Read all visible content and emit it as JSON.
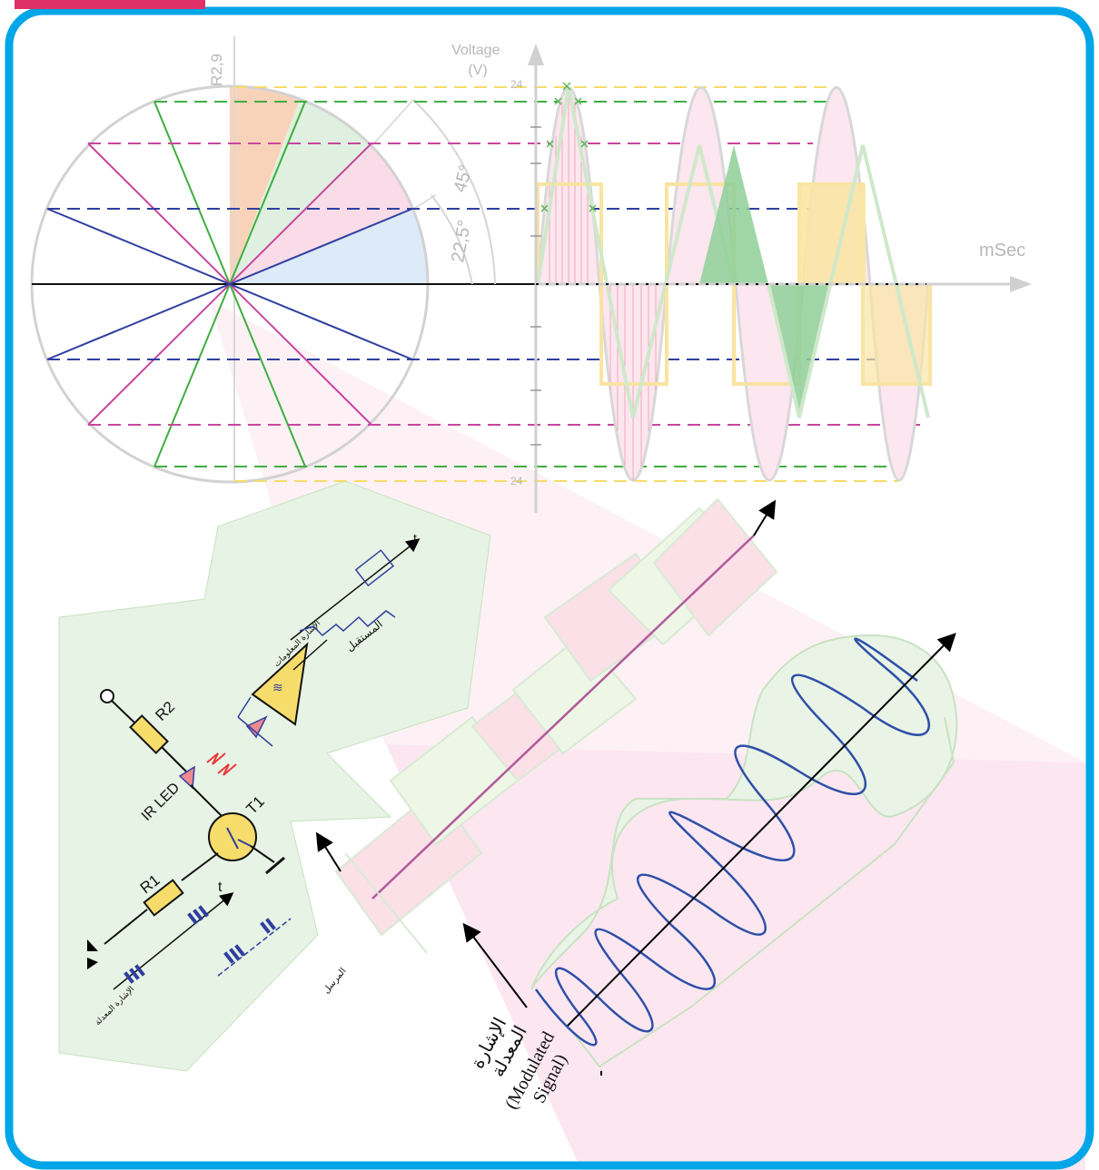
{
  "frame": {
    "border_color": "#00a6e8"
  },
  "phasor": {
    "radius_label": "R2,9",
    "angle_labels": [
      "45°",
      "22,5°"
    ]
  },
  "waveform": {
    "y_axis_label_line1": "Voltage",
    "y_axis_label_line2": "(V)",
    "x_axis_label": "mSec",
    "y_tick_top": "24",
    "y_tick_bottom": "24"
  },
  "circuit": {
    "resistor_top": "R2",
    "resistor_bottom": "R1",
    "led_label": "IR LED",
    "transistor_label": "T1",
    "time_label_top": "t",
    "time_label_bottom": "t",
    "receiver_label": "المستقبل",
    "received_signal_label": "الإشارة المعلومات",
    "modulated_input_label": "الإشارة المعدلة",
    "transmitter_label": "المرسل"
  },
  "modulation": {
    "label_ar_line1": "الإشارة",
    "label_ar_line2": "المعدلة",
    "label_en_line1": "(Modulated",
    "label_en_line2": "Signal)"
  },
  "colors": {
    "green": "#3fae3f",
    "magenta": "#c8469e",
    "blue": "#2f3fa0",
    "yellow": "#f6dc6a",
    "salmon": "#f08a70",
    "grey": "#cfcfcf"
  }
}
